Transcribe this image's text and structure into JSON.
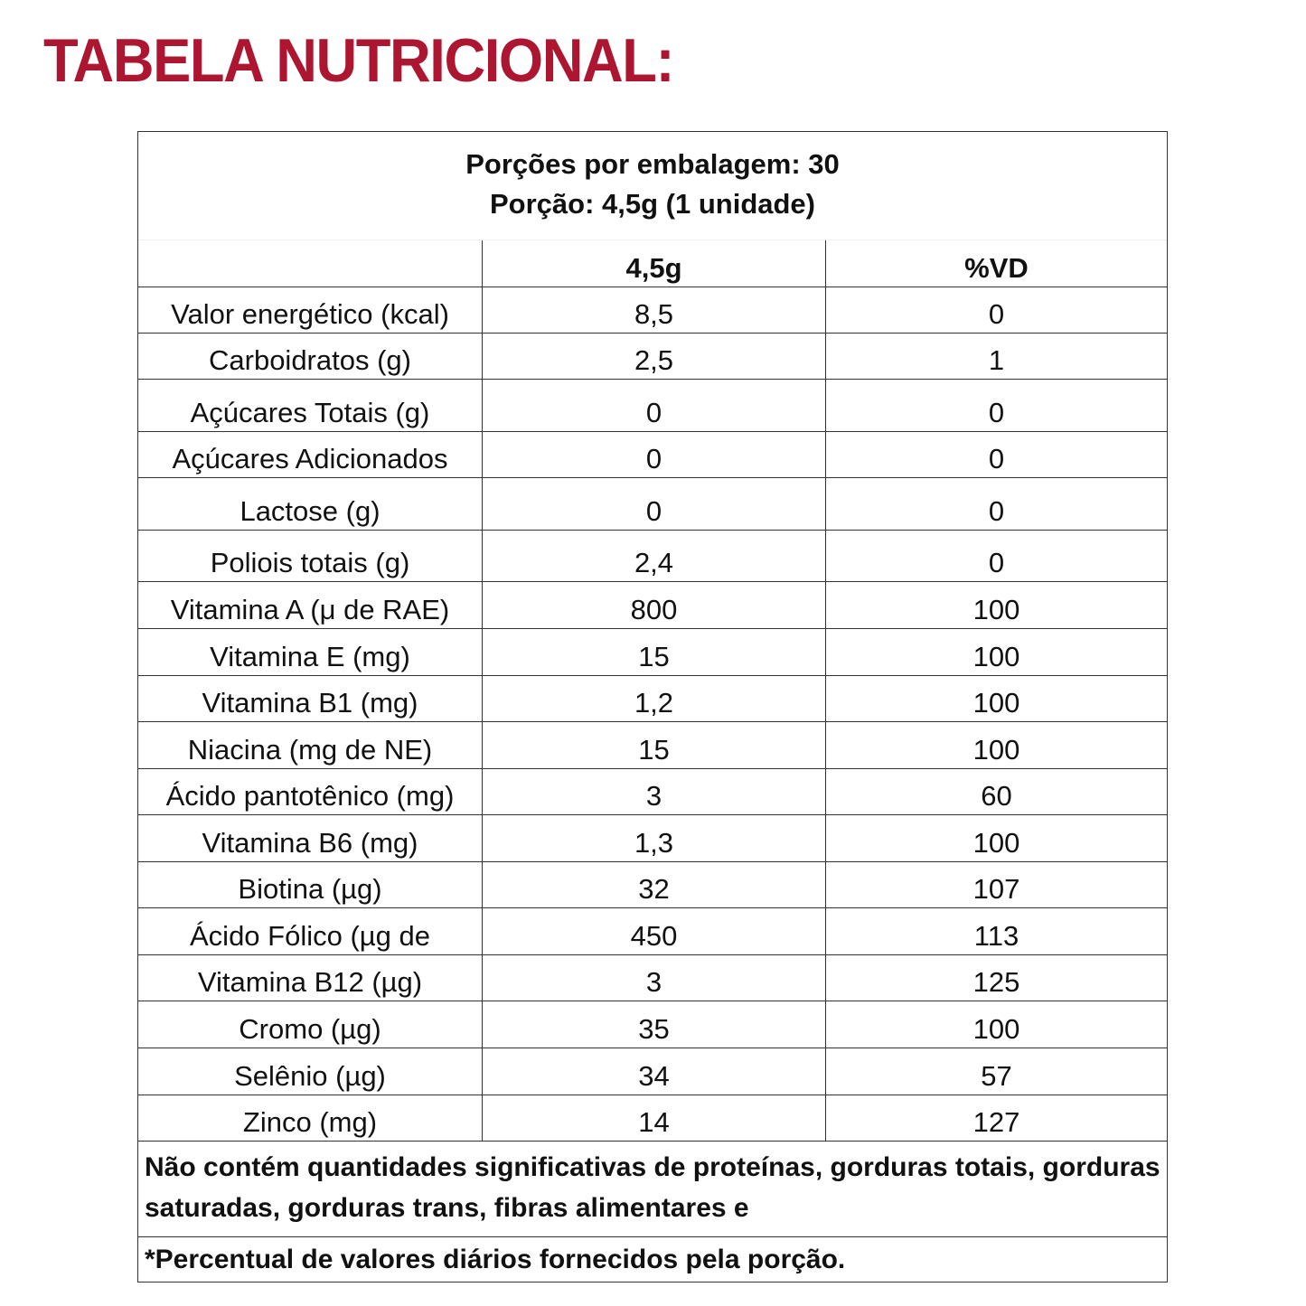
{
  "title": "TABELA NUTRICIONAL:",
  "title_color": "#ad1630",
  "servings_line": "Porções por embalagem: 30",
  "portion_line": "Porção: 4,5g (1 unidade)",
  "columns": [
    "",
    "4,5g",
    "%VD"
  ],
  "rows": [
    [
      "Valor energético (kcal)",
      "8,5",
      "0"
    ],
    [
      "Carboidratos (g)",
      "2,5",
      "1"
    ],
    [
      "Açúcares Totais (g)",
      "0",
      "0"
    ],
    [
      "Açúcares Adicionados",
      "0",
      "0"
    ],
    [
      "Lactose (g)",
      "0",
      "0"
    ],
    [
      "Poliois totais (g)",
      "2,4",
      "0"
    ],
    [
      "Vitamina A (μ de RAE)",
      "800",
      "100"
    ],
    [
      "Vitamina E (mg)",
      "15",
      "100"
    ],
    [
      "Vitamina B1 (mg)",
      "1,2",
      "100"
    ],
    [
      "Niacina (mg de NE)",
      "15",
      "100"
    ],
    [
      "Ácido pantotênico (mg)",
      "3",
      "60"
    ],
    [
      "Vitamina B6 (mg)",
      "1,3",
      "100"
    ],
    [
      "Biotina (µg)",
      "32",
      "107"
    ],
    [
      "Ácido Fólico (µg de",
      "450",
      "113"
    ],
    [
      "Vitamina B12 (µg)",
      "3",
      "125"
    ],
    [
      "Cromo (µg)",
      "35",
      "100"
    ],
    [
      "Selênio (µg)",
      "34",
      "57"
    ],
    [
      "Zinco (mg)",
      "14",
      "127"
    ]
  ],
  "footnote_1": "Não contém quantidades significativas de proteínas, gorduras totais, gorduras saturadas, gorduras trans, fibras alimentares e",
  "footnote_2": "*Percentual de valores diários fornecidos pela porção."
}
